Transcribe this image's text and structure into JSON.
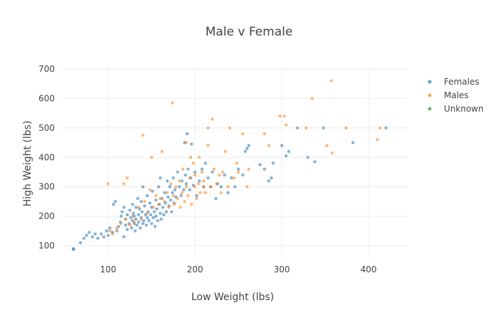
{
  "chart_data": {
    "type": "scatter",
    "title": "Male v Female",
    "xlabel": "Low Weight (lbs)",
    "ylabel": "High Weight (lbs)",
    "xlim": [
      45,
      445
    ],
    "ylim": [
      60,
      705
    ],
    "xticks": [
      100,
      200,
      300,
      400
    ],
    "yticks": [
      100,
      200,
      300,
      400,
      500,
      600,
      700
    ],
    "grid": true,
    "legend_position": "top-right",
    "series": [
      {
        "name": "Females",
        "color": "#1f77b4",
        "points": [
          [
            60,
            87
          ],
          [
            60,
            90
          ],
          [
            68,
            110
          ],
          [
            72,
            125
          ],
          [
            75,
            135
          ],
          [
            78,
            145
          ],
          [
            82,
            130
          ],
          [
            85,
            140
          ],
          [
            88,
            125
          ],
          [
            92,
            140
          ],
          [
            95,
            130
          ],
          [
            98,
            150
          ],
          [
            100,
            135
          ],
          [
            102,
            160
          ],
          [
            105,
            145
          ],
          [
            106,
            240
          ],
          [
            108,
            250
          ],
          [
            110,
            150
          ],
          [
            112,
            165
          ],
          [
            114,
            180
          ],
          [
            115,
            200
          ],
          [
            116,
            215
          ],
          [
            118,
            130
          ],
          [
            118,
            230
          ],
          [
            120,
            190
          ],
          [
            120,
            170
          ],
          [
            122,
            155
          ],
          [
            122,
            205
          ],
          [
            124,
            175
          ],
          [
            125,
            220
          ],
          [
            126,
            195
          ],
          [
            127,
            160
          ],
          [
            128,
            240
          ],
          [
            128,
            185
          ],
          [
            129,
            210
          ],
          [
            130,
            175
          ],
          [
            130,
            200
          ],
          [
            131,
            150
          ],
          [
            132,
            230
          ],
          [
            132,
            190
          ],
          [
            133,
            170
          ],
          [
            134,
            260
          ],
          [
            135,
            205
          ],
          [
            135,
            180
          ],
          [
            136,
            225
          ],
          [
            137,
            160
          ],
          [
            138,
            195
          ],
          [
            138,
            250
          ],
          [
            139,
            215
          ],
          [
            140,
            175
          ],
          [
            140,
            300
          ],
          [
            141,
            185
          ],
          [
            142,
            235
          ],
          [
            143,
            205
          ],
          [
            144,
            170
          ],
          [
            145,
            270
          ],
          [
            145,
            195
          ],
          [
            146,
            215
          ],
          [
            147,
            185
          ],
          [
            148,
            245
          ],
          [
            149,
            205
          ],
          [
            150,
            175
          ],
          [
            150,
            230
          ],
          [
            151,
            285
          ],
          [
            152,
            195
          ],
          [
            153,
            215
          ],
          [
            154,
            165
          ],
          [
            155,
            255
          ],
          [
            155,
            200
          ],
          [
            156,
            225
          ],
          [
            157,
            185
          ],
          [
            158,
            300
          ],
          [
            159,
            240
          ],
          [
            160,
            210
          ],
          [
            160,
            330
          ],
          [
            161,
            190
          ],
          [
            162,
            260
          ],
          [
            163,
            230
          ],
          [
            164,
            205
          ],
          [
            165,
            280
          ],
          [
            166,
            245
          ],
          [
            167,
            215
          ],
          [
            168,
            320
          ],
          [
            169,
            265
          ],
          [
            170,
            235
          ],
          [
            171,
            300
          ],
          [
            172,
            255
          ],
          [
            173,
            215
          ],
          [
            174,
            280
          ],
          [
            175,
            330
          ],
          [
            176,
            245
          ],
          [
            177,
            290
          ],
          [
            178,
            265
          ],
          [
            180,
            350
          ],
          [
            182,
            300
          ],
          [
            184,
            270
          ],
          [
            185,
            320
          ],
          [
            187,
            290
          ],
          [
            188,
            450
          ],
          [
            189,
            340
          ],
          [
            190,
            310
          ],
          [
            191,
            480
          ],
          [
            192,
            360
          ],
          [
            194,
            290
          ],
          [
            195,
            330
          ],
          [
            196,
            445
          ],
          [
            198,
            305
          ],
          [
            200,
            350
          ],
          [
            202,
            270
          ],
          [
            205,
            320
          ],
          [
            208,
            360
          ],
          [
            210,
            300
          ],
          [
            212,
            380
          ],
          [
            215,
            330
          ],
          [
            218,
            300
          ],
          [
            220,
            350
          ],
          [
            224,
            260
          ],
          [
            226,
            310
          ],
          [
            230,
            300
          ],
          [
            234,
            340
          ],
          [
            238,
            280
          ],
          [
            242,
            330
          ],
          [
            246,
            300
          ],
          [
            250,
            360
          ],
          [
            255,
            340
          ],
          [
            258,
            420
          ],
          [
            260,
            430
          ],
          [
            262,
            440
          ],
          [
            275,
            375
          ],
          [
            280,
            360
          ],
          [
            285,
            320
          ],
          [
            288,
            330
          ],
          [
            290,
            380
          ],
          [
            300,
            440
          ],
          [
            305,
            405
          ],
          [
            308,
            420
          ],
          [
            318,
            500
          ],
          [
            330,
            400
          ],
          [
            338,
            385
          ],
          [
            348,
            500
          ],
          [
            382,
            450
          ],
          [
            420,
            500
          ]
        ]
      },
      {
        "name": "Males",
        "color": "#ff7f0e",
        "points": [
          [
            100,
            310
          ],
          [
            102,
            150
          ],
          [
            105,
            140
          ],
          [
            110,
            160
          ],
          [
            115,
            175
          ],
          [
            118,
            310
          ],
          [
            120,
            190
          ],
          [
            122,
            330
          ],
          [
            125,
            170
          ],
          [
            128,
            200
          ],
          [
            130,
            180
          ],
          [
            135,
            230
          ],
          [
            138,
            190
          ],
          [
            140,
            475
          ],
          [
            142,
            250
          ],
          [
            145,
            210
          ],
          [
            148,
            290
          ],
          [
            150,
            400
          ],
          [
            152,
            230
          ],
          [
            155,
            270
          ],
          [
            158,
            240
          ],
          [
            160,
            260
          ],
          [
            162,
            420
          ],
          [
            165,
            250
          ],
          [
            168,
            280
          ],
          [
            170,
            230
          ],
          [
            172,
            310
          ],
          [
            174,
            585
          ],
          [
            175,
            270
          ],
          [
            176,
            240
          ],
          [
            178,
            300
          ],
          [
            180,
            260
          ],
          [
            182,
            320
          ],
          [
            183,
            230
          ],
          [
            185,
            280
          ],
          [
            186,
            360
          ],
          [
            188,
            250
          ],
          [
            190,
            300
          ],
          [
            190,
            450
          ],
          [
            192,
            270
          ],
          [
            194,
            330
          ],
          [
            195,
            400
          ],
          [
            196,
            240
          ],
          [
            198,
            380
          ],
          [
            200,
            300
          ],
          [
            200,
            340
          ],
          [
            202,
            260
          ],
          [
            204,
            310
          ],
          [
            205,
            400
          ],
          [
            206,
            280
          ],
          [
            208,
            350
          ],
          [
            210,
            320
          ],
          [
            210,
            300
          ],
          [
            212,
            280
          ],
          [
            215,
            440
          ],
          [
            215,
            500
          ],
          [
            218,
            300
          ],
          [
            220,
            530
          ],
          [
            222,
            360
          ],
          [
            225,
            310
          ],
          [
            228,
            340
          ],
          [
            230,
            280
          ],
          [
            232,
            350
          ],
          [
            235,
            420
          ],
          [
            238,
            300
          ],
          [
            240,
            500
          ],
          [
            245,
            330
          ],
          [
            248,
            380
          ],
          [
            250,
            350
          ],
          [
            255,
            480
          ],
          [
            260,
            300
          ],
          [
            262,
            360
          ],
          [
            280,
            480
          ],
          [
            285,
            440
          ],
          [
            298,
            540
          ],
          [
            303,
            540
          ],
          [
            305,
            510
          ],
          [
            328,
            500
          ],
          [
            335,
            600
          ],
          [
            352,
            440
          ],
          [
            357,
            660
          ],
          [
            358,
            415
          ],
          [
            374,
            500
          ],
          [
            410,
            460
          ],
          [
            413,
            500
          ]
        ]
      },
      {
        "name": "Unknown",
        "color": "#2ca02c",
        "points": []
      }
    ]
  }
}
